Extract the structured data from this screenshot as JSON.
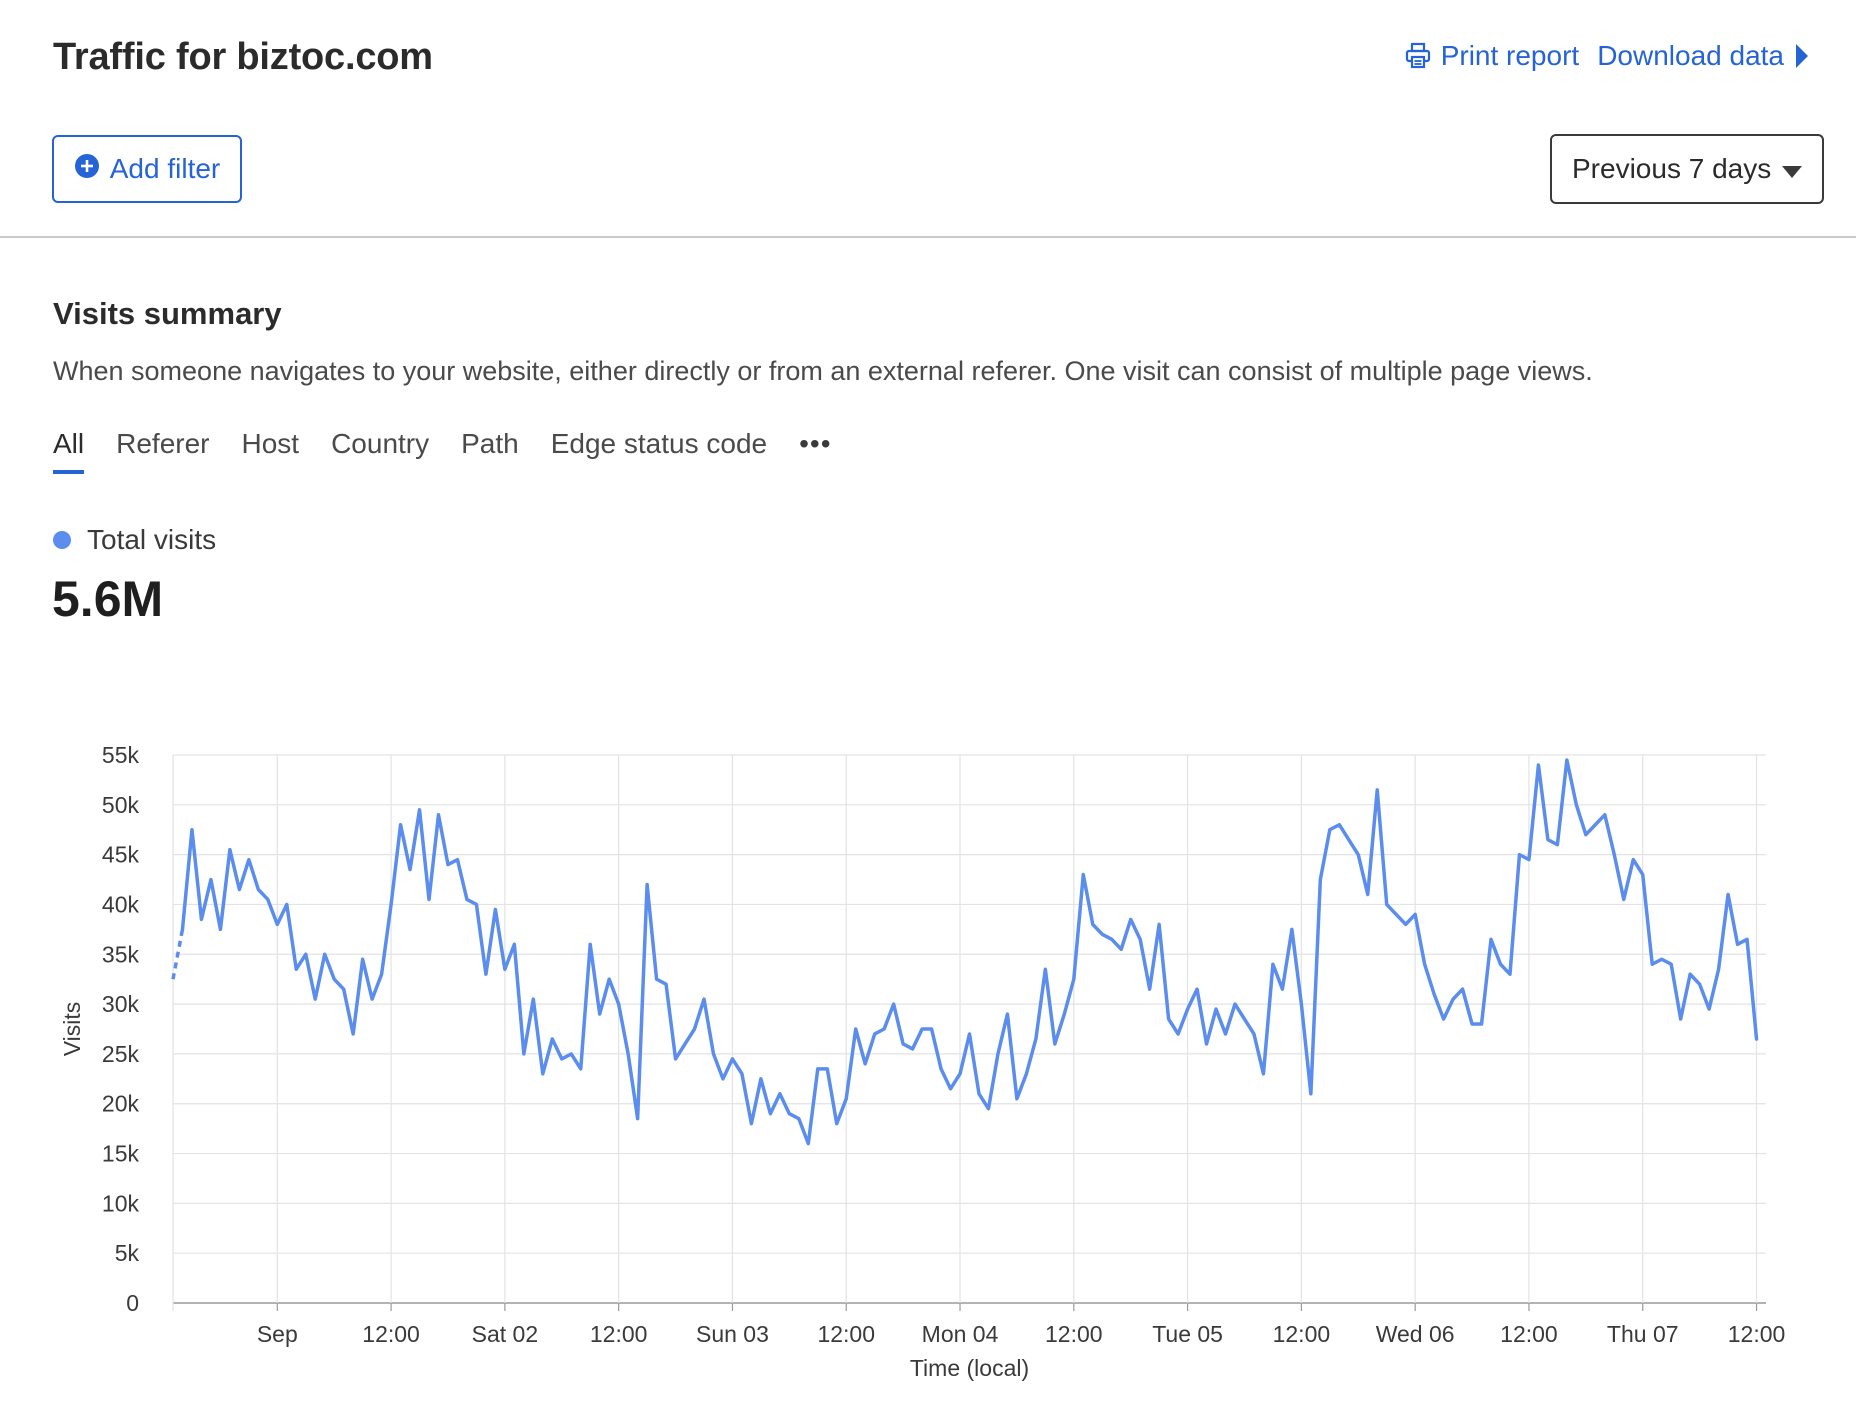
{
  "header": {
    "title": "Traffic for biztoc.com",
    "print_label": "Print report",
    "download_label": "Download data"
  },
  "filters": {
    "add_filter_label": "Add filter",
    "period_label": "Previous 7 days"
  },
  "summary": {
    "title": "Visits summary",
    "description": "When someone navigates to your website, either directly or from an external referer. One visit can consist of multiple page views.",
    "tabs": [
      {
        "label": "All",
        "active": true
      },
      {
        "label": "Referer"
      },
      {
        "label": "Host"
      },
      {
        "label": "Country"
      },
      {
        "label": "Path"
      },
      {
        "label": "Edge status code"
      }
    ],
    "more_label": "•••",
    "legend_label": "Total visits",
    "total": "5.6M"
  },
  "colors": {
    "accent": "#2563d6",
    "series": "#5b8def"
  },
  "chart_data": {
    "type": "line",
    "ylabel": "Visits",
    "xlabel": "Time (local)",
    "ylim": [
      0,
      55000
    ],
    "y_ticks": [
      0,
      5000,
      10000,
      15000,
      20000,
      25000,
      30000,
      35000,
      40000,
      45000,
      50000,
      55000
    ],
    "y_tick_labels": [
      "0",
      "5k",
      "10k",
      "15k",
      "20k",
      "25k",
      "30k",
      "35k",
      "40k",
      "45k",
      "50k",
      "55k"
    ],
    "x_ticks": [
      {
        "hour": 11,
        "label": "Sep"
      },
      {
        "hour": 23,
        "label": "12:00"
      },
      {
        "hour": 35,
        "label": "Sat 02"
      },
      {
        "hour": 47,
        "label": "12:00"
      },
      {
        "hour": 59,
        "label": "Sun 03"
      },
      {
        "hour": 71,
        "label": "12:00"
      },
      {
        "hour": 83,
        "label": "Mon 04"
      },
      {
        "hour": 95,
        "label": "12:00"
      },
      {
        "hour": 107,
        "label": "Tue 05"
      },
      {
        "hour": 119,
        "label": "12:00"
      },
      {
        "hour": 131,
        "label": "Wed 06"
      },
      {
        "hour": 143,
        "label": "12:00"
      },
      {
        "hour": 155,
        "label": "Thu 07"
      },
      {
        "hour": 167,
        "label": "12:00"
      }
    ],
    "x_domain": [
      0,
      168
    ],
    "grid": true,
    "dashed_start": [
      0,
      1
    ],
    "dashed_end": [
      167,
      168
    ],
    "series": [
      {
        "name": "Total visits",
        "values": [
          32500,
          37500,
          47500,
          38500,
          42500,
          37500,
          45500,
          41500,
          44500,
          41500,
          40500,
          38000,
          40000,
          33500,
          35000,
          30500,
          35000,
          32500,
          31500,
          27000,
          34500,
          30500,
          33000,
          40000,
          48000,
          43500,
          49500,
          40500,
          49000,
          44000,
          44500,
          40500,
          40000,
          33000,
          39500,
          33500,
          36000,
          25000,
          30500,
          23000,
          26500,
          24500,
          25000,
          23500,
          36000,
          29000,
          32500,
          30000,
          25000,
          18500,
          42000,
          32500,
          32000,
          24500,
          26000,
          27500,
          30500,
          25000,
          22500,
          24500,
          23000,
          18000,
          22500,
          19000,
          21000,
          19000,
          18500,
          16000,
          23500,
          23500,
          18000,
          20500,
          27500,
          24000,
          27000,
          27500,
          30000,
          26000,
          25500,
          27500,
          27500,
          23500,
          21500,
          23000,
          27000,
          21000,
          19500,
          25000,
          29000,
          20500,
          23000,
          26500,
          33500,
          26000,
          29000,
          32500,
          43000,
          38000,
          37000,
          36500,
          35500,
          38500,
          36500,
          31500,
          38000,
          28500,
          27000,
          29500,
          31500,
          26000,
          29500,
          27000,
          30000,
          28500,
          27000,
          23000,
          34000,
          31500,
          37500,
          30000,
          21000,
          42500,
          47500,
          48000,
          46500,
          45000,
          41000,
          51500,
          40000,
          39000,
          38000,
          39000,
          34000,
          31000,
          28500,
          30500,
          31500,
          28000,
          28000,
          36500,
          34000,
          33000,
          45000,
          44500,
          54000,
          46500,
          46000,
          54500,
          50000,
          47000,
          48000,
          49000,
          45000,
          40500,
          44500,
          43000,
          34000,
          34500,
          34000,
          28500,
          33000,
          32000,
          29500,
          33500,
          41000,
          36000,
          36500,
          26500
        ]
      }
    ]
  }
}
